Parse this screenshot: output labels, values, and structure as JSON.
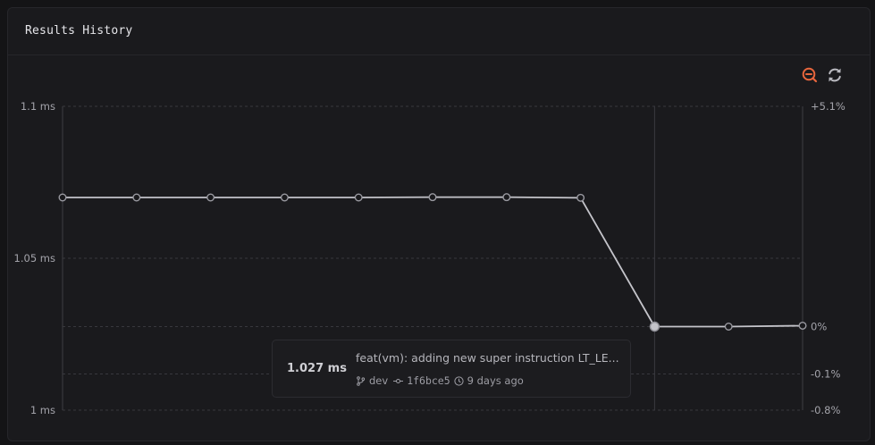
{
  "header": {
    "title": "Results History"
  },
  "toolbar": {
    "zoom_out_icon": "zoom-out-icon",
    "refresh_icon": "refresh-icon",
    "accent": "#e8663d"
  },
  "chart_data": {
    "type": "line",
    "title": "Results History",
    "x": [
      1,
      2,
      3,
      4,
      5,
      6,
      7,
      8,
      9,
      10,
      11
    ],
    "series": [
      {
        "values": [
          1.07,
          1.07,
          1.07,
          1.07,
          1.07,
          1.0701,
          1.0701,
          1.0699,
          1.0275,
          1.0275,
          1.0278
        ]
      }
    ],
    "ylim": [
      1.0,
      1.1
    ],
    "left_ticks": [
      "1.1 ms",
      "1.05 ms",
      "1 ms"
    ],
    "left_tick_values": [
      1.1,
      1.05,
      1.0
    ],
    "right_ticks": [
      "+5.1%",
      "0%",
      "-0.1%",
      "-0.8%"
    ],
    "right_tick_values": [
      1.1,
      1.0275,
      1.0119,
      1.0
    ],
    "selected_index": 8,
    "grid": true,
    "line_color": "#c4c4ca"
  },
  "tooltip": {
    "value": "1.027 ms",
    "message": "feat(vm): adding new super instruction LT_LE...",
    "branch": "dev",
    "commit": "1f6bce5",
    "time": "9 days ago"
  }
}
